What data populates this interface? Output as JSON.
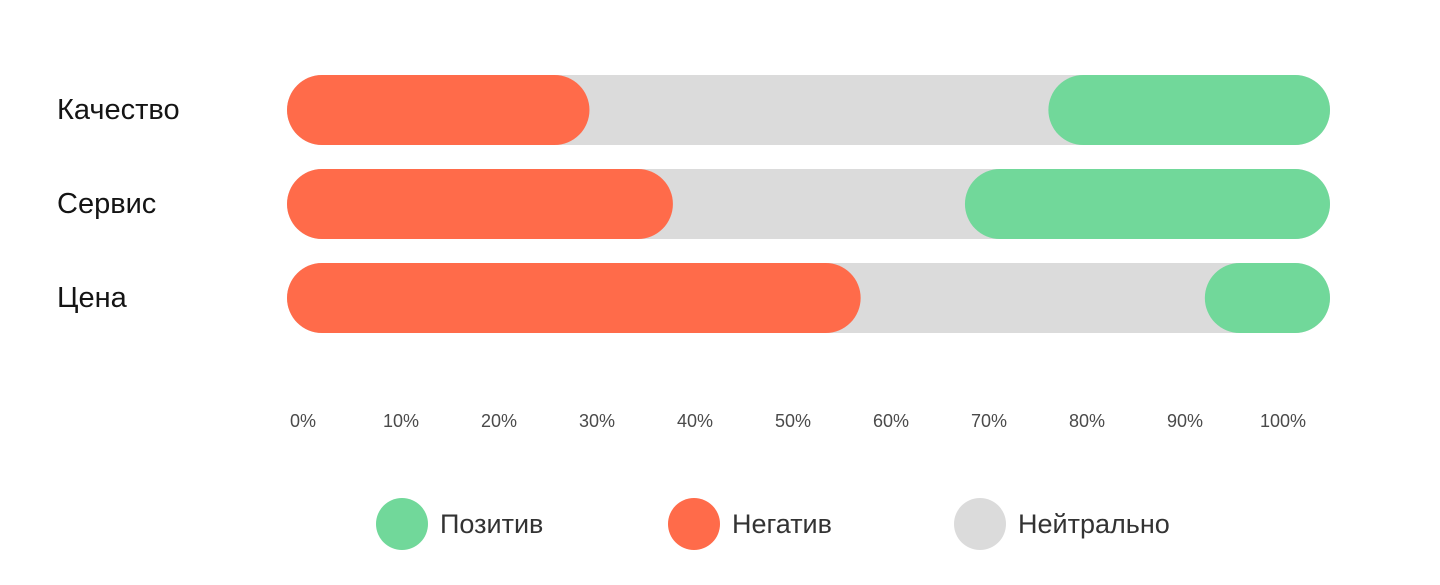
{
  "chart_data": {
    "type": "bar",
    "orientation": "horizontal",
    "stacked": true,
    "title": "",
    "xlabel": "",
    "ylabel": "",
    "categories": [
      "Качество",
      "Сервис",
      "Цена"
    ],
    "series": [
      {
        "name": "Негатив",
        "color": "#FF6B4A",
        "values": [
          29,
          37,
          55
        ]
      },
      {
        "name": "Нейтрально",
        "color": "#DBDBDB",
        "values": [
          44,
          28,
          33
        ]
      },
      {
        "name": "Позитив",
        "color": "#71D89A",
        "values": [
          27,
          35,
          12
        ]
      }
    ],
    "xlim": [
      0,
      100
    ],
    "xticks": [
      "0%",
      "10%",
      "20%",
      "30%",
      "40%",
      "50%",
      "60%",
      "70%",
      "80%",
      "90%",
      "100%"
    ],
    "grid": false,
    "legend": {
      "position": "bottom",
      "items": [
        {
          "label": "Позитив",
          "color": "#71D89A"
        },
        {
          "label": "Негатив",
          "color": "#FF6B4A"
        },
        {
          "label": "Нейтрально",
          "color": "#DBDBDB"
        }
      ]
    }
  }
}
